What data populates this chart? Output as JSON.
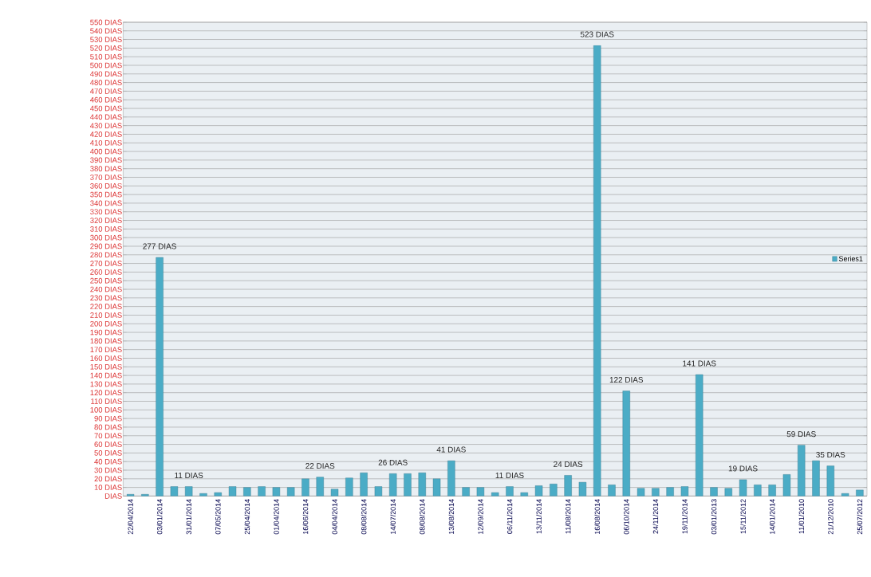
{
  "chart_data": {
    "type": "bar",
    "categories": [
      "22/04/2014",
      null,
      "03/01/2014",
      null,
      "31/01/2014",
      null,
      "07/05/2014",
      null,
      "25/04/2014",
      null,
      "01/04/2014",
      null,
      "16/06/2014",
      null,
      "04/04/2014",
      null,
      "08/08/2014",
      null,
      "14/07/2014",
      null,
      "08/08/2014",
      null,
      "13/08/2014",
      null,
      "12/09/2014",
      null,
      "06/11/2014",
      null,
      "13/11/2014",
      null,
      "11/08/2014",
      null,
      "16/08/2014",
      null,
      "06/10/2014",
      null,
      "24/11/2014",
      null,
      "19/11/2014",
      null,
      "03/01/2013",
      null,
      "15/11/2012",
      null,
      "14/01/2014",
      null,
      "11/01/2010",
      null,
      "21/12/2010",
      null,
      "25/07/2012"
    ],
    "series": [
      {
        "name": "Series1",
        "color": "#4bacc6",
        "values": [
          2,
          2,
          277,
          11,
          11,
          3,
          4,
          11,
          10,
          11,
          10,
          10,
          20,
          22,
          8,
          21,
          27,
          11,
          26,
          26,
          27,
          20,
          41,
          10,
          10,
          4,
          11,
          4,
          12,
          14,
          24,
          16,
          523,
          13,
          122,
          9,
          9,
          10,
          11,
          141,
          10,
          9,
          19,
          13,
          13,
          25,
          59,
          41,
          35,
          3,
          7
        ],
        "value_labels": [
          null,
          null,
          "277 DIAS",
          null,
          "11 DIAS",
          null,
          null,
          null,
          null,
          null,
          null,
          null,
          null,
          "22 DIAS",
          null,
          null,
          null,
          null,
          "26 DIAS",
          null,
          null,
          null,
          "41 DIAS",
          null,
          null,
          null,
          "11 DIAS",
          null,
          null,
          null,
          "24 DIAS",
          null,
          "523 DIAS",
          null,
          "122 DIAS",
          null,
          null,
          null,
          null,
          "141 DIAS",
          null,
          null,
          "19 DIAS",
          null,
          null,
          null,
          "59 DIAS",
          null,
          "35 DIAS",
          null,
          null
        ]
      }
    ],
    "ylim": [
      0,
      550
    ],
    "yticks": [
      {
        "value": 0,
        "label": "DIAS"
      },
      {
        "value": 10,
        "label": "10 DIAS"
      },
      {
        "value": 20,
        "label": "20 DIAS"
      },
      {
        "value": 30,
        "label": "30 DIAS"
      },
      {
        "value": 40,
        "label": "40 DIAS"
      },
      {
        "value": 50,
        "label": "50 DIAS"
      },
      {
        "value": 60,
        "label": "60 DIAS"
      },
      {
        "value": 70,
        "label": "70 DIAS"
      },
      {
        "value": 80,
        "label": "80 DIAS"
      },
      {
        "value": 90,
        "label": "90 DIAS"
      },
      {
        "value": 100,
        "label": "100 DIAS"
      },
      {
        "value": 110,
        "label": "110 DIAS"
      },
      {
        "value": 120,
        "label": "120 DIAS"
      },
      {
        "value": 130,
        "label": "130 DIAS"
      },
      {
        "value": 140,
        "label": "140 DIAS"
      },
      {
        "value": 150,
        "label": "150 DIAS"
      },
      {
        "value": 160,
        "label": "160 DIAS"
      },
      {
        "value": 170,
        "label": "170 DIAS"
      },
      {
        "value": 180,
        "label": "180 DIAS"
      },
      {
        "value": 190,
        "label": "190 DIAS"
      },
      {
        "value": 200,
        "label": "200 DIAS"
      },
      {
        "value": 210,
        "label": "210 DIAS"
      },
      {
        "value": 220,
        "label": "220 DIAS"
      },
      {
        "value": 230,
        "label": "230 DIAS"
      },
      {
        "value": 240,
        "label": "240 DIAS"
      },
      {
        "value": 250,
        "label": "250 DIAS"
      },
      {
        "value": 260,
        "label": "260 DIAS"
      },
      {
        "value": 270,
        "label": "270 DIAS"
      },
      {
        "value": 280,
        "label": "280 DIAS"
      },
      {
        "value": 290,
        "label": "290 DIAS"
      },
      {
        "value": 300,
        "label": "300 DIAS"
      },
      {
        "value": 310,
        "label": "310 DIAS"
      },
      {
        "value": 320,
        "label": "320 DIAS"
      },
      {
        "value": 330,
        "label": "330 DIAS"
      },
      {
        "value": 340,
        "label": "340 DIAS"
      },
      {
        "value": 350,
        "label": "350 DIAS"
      },
      {
        "value": 360,
        "label": "360 DIAS"
      },
      {
        "value": 370,
        "label": "370 DIAS"
      },
      {
        "value": 380,
        "label": "380 DIAS"
      },
      {
        "value": 390,
        "label": "390 DIAS"
      },
      {
        "value": 400,
        "label": "400 DIAS"
      },
      {
        "value": 410,
        "label": "410 DIAS"
      },
      {
        "value": 420,
        "label": "420 DIAS"
      },
      {
        "value": 430,
        "label": "430 DIAS"
      },
      {
        "value": 440,
        "label": "440 DIAS"
      },
      {
        "value": 450,
        "label": "450 DIAS"
      },
      {
        "value": 460,
        "label": "460 DIAS"
      },
      {
        "value": 470,
        "label": "470 DIAS"
      },
      {
        "value": 480,
        "label": "480 DIAS"
      },
      {
        "value": 490,
        "label": "490 DIAS"
      },
      {
        "value": 500,
        "label": "500 DIAS"
      },
      {
        "value": 510,
        "label": "510 DIAS"
      },
      {
        "value": 520,
        "label": "520 DIAS"
      },
      {
        "value": 530,
        "label": "530 DIAS"
      },
      {
        "value": 540,
        "label": "540 DIAS"
      },
      {
        "value": 550,
        "label": "550 DIAS"
      }
    ],
    "grid": "y",
    "legend": "right"
  }
}
